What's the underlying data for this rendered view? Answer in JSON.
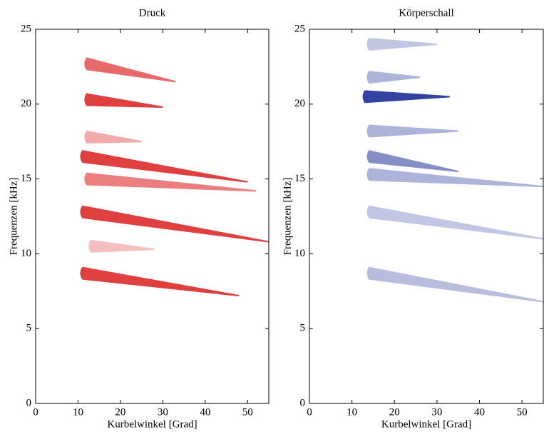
{
  "chart_data": [
    {
      "type": "spectrogram",
      "title": "Druck",
      "xlabel": "Kurbelwinkel [Grad]",
      "ylabel": "Frequenzen [kHz]",
      "xlim": [
        0,
        55
      ],
      "ylim": [
        0,
        25
      ],
      "xticks": [
        0,
        10,
        20,
        30,
        40,
        50
      ],
      "yticks": [
        0,
        5,
        10,
        15,
        20,
        25
      ],
      "color": "#dd2a2a",
      "ridges": [
        {
          "x": [
            11,
            48
          ],
          "y": [
            8.7,
            7.2
          ],
          "intensity": 0.9
        },
        {
          "x": [
            11,
            55
          ],
          "y": [
            12.8,
            10.8
          ],
          "intensity": 0.9
        },
        {
          "x": [
            12,
            52
          ],
          "y": [
            15,
            14.2
          ],
          "intensity": 0.6
        },
        {
          "x": [
            11,
            50
          ],
          "y": [
            16.5,
            14.8
          ],
          "intensity": 0.9
        },
        {
          "x": [
            12,
            25
          ],
          "y": [
            17.8,
            17.5
          ],
          "intensity": 0.4
        },
        {
          "x": [
            12,
            30
          ],
          "y": [
            20.3,
            19.8
          ],
          "intensity": 0.9
        },
        {
          "x": [
            12,
            33
          ],
          "y": [
            22.7,
            21.5
          ],
          "intensity": 0.7
        },
        {
          "x": [
            13,
            28
          ],
          "y": [
            10.5,
            10.3
          ],
          "intensity": 0.3
        }
      ]
    },
    {
      "type": "spectrogram",
      "title": "Körperschall",
      "xlabel": "Kurbelwinkel [Grad]",
      "ylabel": "Frequenzen [kHz]",
      "xlim": [
        0,
        55
      ],
      "ylim": [
        0,
        25
      ],
      "xticks": [
        0,
        10,
        20,
        30,
        40,
        50
      ],
      "yticks": [
        0,
        5,
        10,
        15,
        20,
        25
      ],
      "color": "#33439f",
      "ridges": [
        {
          "x": [
            13,
            33
          ],
          "y": [
            20.5,
            20.5
          ],
          "intensity": 1.0
        },
        {
          "x": [
            14,
            26
          ],
          "y": [
            21.8,
            21.8
          ],
          "intensity": 0.4
        },
        {
          "x": [
            14,
            30
          ],
          "y": [
            24,
            24
          ],
          "intensity": 0.3
        },
        {
          "x": [
            14,
            35
          ],
          "y": [
            18.2,
            18.2
          ],
          "intensity": 0.4
        },
        {
          "x": [
            14,
            35
          ],
          "y": [
            16.5,
            15.5
          ],
          "intensity": 0.6
        },
        {
          "x": [
            14,
            55
          ],
          "y": [
            15.3,
            14.5
          ],
          "intensity": 0.4
        },
        {
          "x": [
            14,
            55
          ],
          "y": [
            12.8,
            11
          ],
          "intensity": 0.3
        },
        {
          "x": [
            14,
            55
          ],
          "y": [
            8.7,
            6.8
          ],
          "intensity": 0.35
        }
      ]
    }
  ]
}
